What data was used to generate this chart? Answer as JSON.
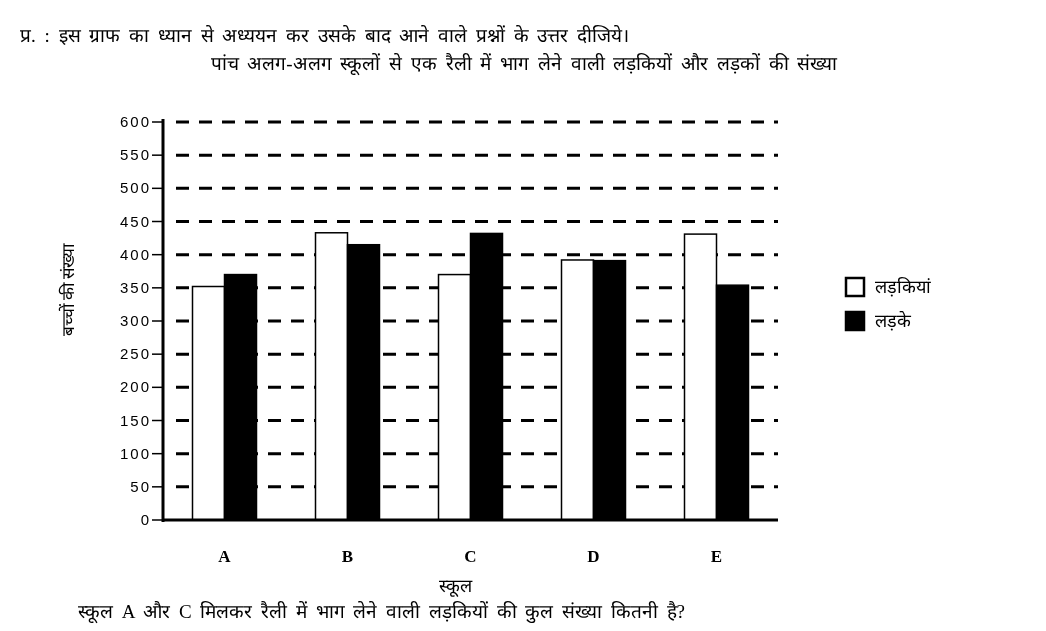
{
  "chart_data": {
    "type": "bar",
    "title": "पांच अलग-अलग स्कूलों से एक रैली में भाग लेने वाली लड़कियों और लड़कों की संख्या",
    "xlabel": "स्कूल",
    "ylabel": "बच्चों की संख्या",
    "annotations": [
      "प्र. : इस ग्राफ का ध्यान से अध्ययन कर उसके बाद आने वाले प्रश्नों के उत्तर दीजिये।",
      "स्कूल A और C मिलकर रैली में भाग लेने वाली लड़कियों की कुल संख्या कितनी है?"
    ],
    "categories": [
      "A",
      "B",
      "C",
      "D",
      "E"
    ],
    "series": [
      {
        "name": "लड़कियां",
        "color": "#ffffff",
        "values": [
          352,
          433,
          370,
          392,
          431
        ]
      },
      {
        "name": "लड़के",
        "color": "#000000",
        "values": [
          370,
          415,
          432,
          391,
          354
        ]
      }
    ],
    "ylim": [
      0,
      600
    ],
    "yticks": [
      0,
      50,
      100,
      150,
      200,
      250,
      300,
      350,
      400,
      450,
      500,
      550,
      600
    ],
    "grid": "y",
    "legend": "right"
  }
}
